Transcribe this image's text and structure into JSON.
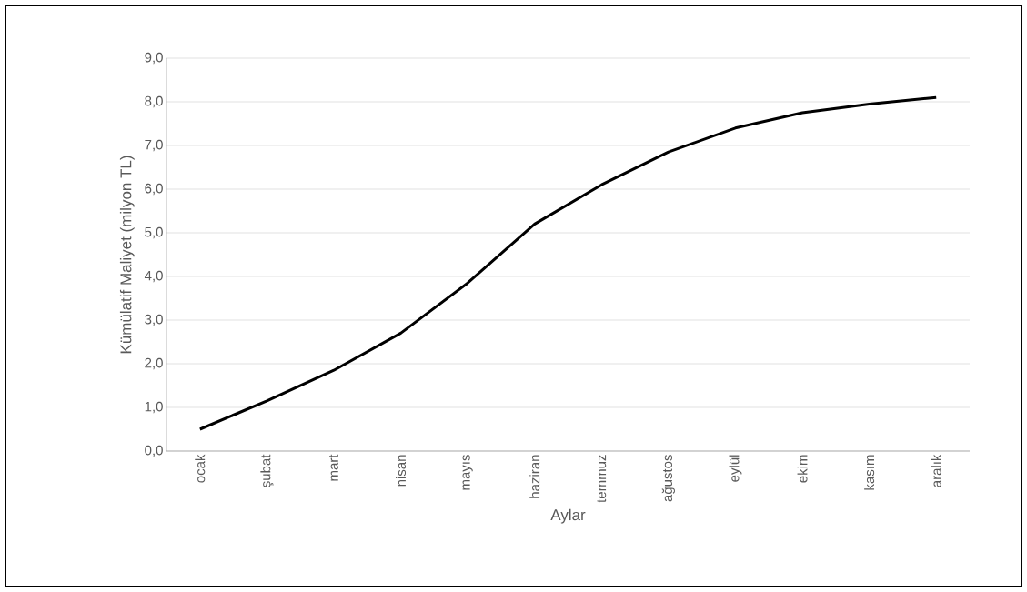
{
  "chart_data": {
    "type": "line",
    "xlabel": "Aylar",
    "ylabel": "Kümülatif Maliyet (milyon TL)",
    "categories": [
      "ocak",
      "şubat",
      "mart",
      "nisan",
      "mayıs",
      "haziran",
      "temmuz",
      "ağustos",
      "eylül",
      "ekim",
      "kasım",
      "aralık"
    ],
    "values": [
      0.5,
      1.15,
      1.85,
      2.7,
      3.85,
      5.2,
      6.1,
      6.85,
      7.4,
      7.75,
      7.95,
      8.1
    ],
    "color": "#000000",
    "ylim": [
      0,
      9
    ],
    "yticks": [
      {
        "value": 0,
        "label": "0,0"
      },
      {
        "value": 1,
        "label": "1,0"
      },
      {
        "value": 2,
        "label": "2,0"
      },
      {
        "value": 3,
        "label": "3,0"
      },
      {
        "value": 4,
        "label": "4,0"
      },
      {
        "value": 5,
        "label": "5,0"
      },
      {
        "value": 6,
        "label": "6,0"
      },
      {
        "value": 7,
        "label": "7,0"
      },
      {
        "value": 8,
        "label": "8,0"
      },
      {
        "value": 9,
        "label": "9,0"
      }
    ],
    "grid": "y",
    "marker": "none",
    "line_style": "solid"
  }
}
